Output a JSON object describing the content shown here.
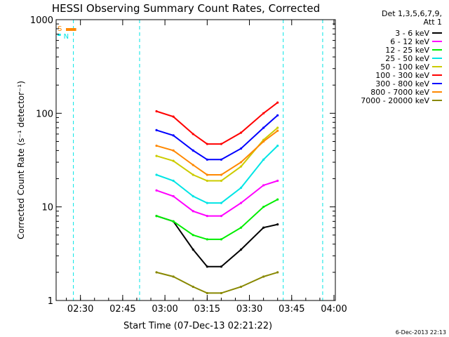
{
  "colors": {
    "background": "#ffffff",
    "axes": "#000000",
    "text": "#000000",
    "s_bar": "#ff8800",
    "n_bar": "#00e5e5",
    "flag_line": "#00e5e5"
  },
  "chart_data": {
    "type": "line",
    "title": "HESSI Observing Summary Count Rates, Corrected",
    "xlabel": "Start Time (07-Dec-13 02:21:22)",
    "ylabel": "Corrected Count Rate (s⁻¹ detector⁻¹)",
    "y_scale": "log",
    "xlim": [
      "02:21:22",
      "04:00:30"
    ],
    "ylim": [
      1,
      1000
    ],
    "x_ticks": [
      "02:30",
      "02:45",
      "03:00",
      "03:15",
      "03:30",
      "03:45",
      "04:00"
    ],
    "y_ticks": [
      "1",
      "10",
      "100",
      "1000"
    ],
    "legend_header": [
      "Det 1,3,5,6,7,9,",
      "Att 1"
    ],
    "legend_position": "top-right",
    "timestamp": "6-Dec-2013 22:13",
    "gaps": [
      [
        "02:27:30",
        "02:51:00"
      ],
      [
        "03:42:00",
        "03:56:00"
      ]
    ],
    "flag_labels": {
      "s": "S",
      "n": "N"
    },
    "series": [
      {
        "name": "3 - 6 keV",
        "color": "#000000",
        "values": [
          8,
          7,
          3.5,
          2.3,
          2.3,
          3.5,
          6,
          6.5
        ]
      },
      {
        "name": "6 - 12 keV",
        "color": "#ff00ff",
        "values": [
          15,
          13,
          9,
          8,
          8,
          11,
          17,
          19
        ]
      },
      {
        "name": "12 - 25 keV",
        "color": "#00ee00",
        "values": [
          8,
          7,
          5,
          4.5,
          4.5,
          6,
          10,
          12
        ]
      },
      {
        "name": "25 - 50 keV",
        "color": "#00e5e5",
        "values": [
          22,
          19,
          13,
          11,
          11,
          16,
          32,
          45
        ]
      },
      {
        "name": "50 - 100 keV",
        "color": "#cccc00",
        "values": [
          35,
          31,
          22,
          19,
          19,
          27,
          52,
          70
        ]
      },
      {
        "name": "100 - 300 keV",
        "color": "#ff0000",
        "values": [
          105,
          92,
          60,
          47,
          47,
          62,
          100,
          130
        ]
      },
      {
        "name": "300 - 800 keV",
        "color": "#0000ff",
        "values": [
          66,
          58,
          40,
          32,
          32,
          42,
          70,
          95
        ]
      },
      {
        "name": "800 - 7000 keV",
        "color": "#ff8800",
        "values": [
          45,
          40,
          28,
          22,
          22,
          30,
          50,
          65
        ]
      },
      {
        "name": "7000 - 20000 keV",
        "color": "#888800",
        "values": [
          2,
          1.8,
          1.4,
          1.2,
          1.2,
          1.4,
          1.8,
          2
        ]
      }
    ],
    "x": [
      "02:57:00",
      "03:03:00",
      "03:10:00",
      "03:15:00",
      "03:20:00",
      "03:27:00",
      "03:35:00",
      "03:40:00"
    ]
  }
}
